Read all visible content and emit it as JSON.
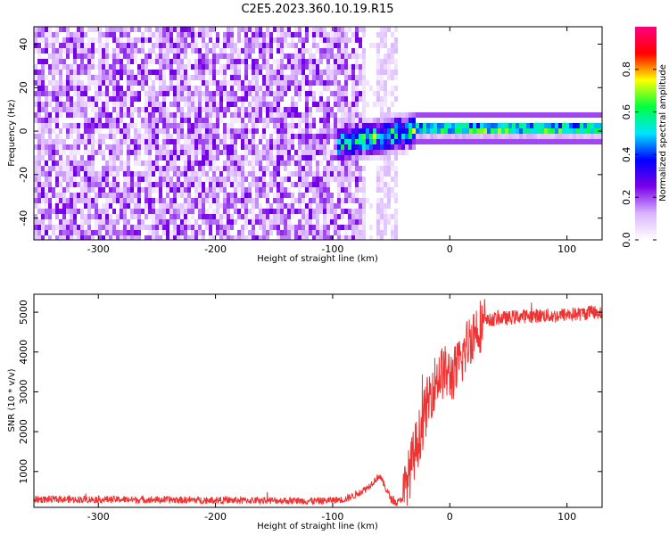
{
  "title": "C2E5.2023.360.10.19.R15",
  "colorbar": {
    "label": "Normalized spectral amplitude",
    "ticks": [
      "0.0",
      "0.2",
      "0.4",
      "0.6",
      "0.8"
    ],
    "tick_values": [
      0.0,
      0.2,
      0.4,
      0.6,
      0.8
    ],
    "range": [
      0,
      1
    ],
    "colormap": [
      "#ffffff",
      "#d9b3ff",
      "#7a00e6",
      "#0000ff",
      "#00e5ff",
      "#00ff40",
      "#ffff00",
      "#ff0000",
      "#ff007f"
    ]
  },
  "chart_data": [
    {
      "type": "heatmap",
      "xlabel": "Height of straight line (km)",
      "ylabel": "Frequency (Hz)",
      "xlim": [
        -355,
        130
      ],
      "ylim": [
        -50,
        48
      ],
      "xticks": [
        -300,
        -200,
        -100,
        0,
        100
      ],
      "xtick_labels": [
        "-300",
        "-200",
        "-100",
        "0",
        "100"
      ],
      "yticks": [
        -40,
        -20,
        0,
        20,
        40
      ],
      "ytick_labels": [
        "-40",
        "-20",
        "0",
        "20",
        "40"
      ],
      "grid": false,
      "description_values": {
        "noise_region_x": [
          -355,
          -45
        ],
        "noise_gap_x": [
          -72,
          -62
        ],
        "signal_line_frequency_hz": 1,
        "signal_line_x": [
          -30,
          130
        ],
        "transition_x": [
          -95,
          -30
        ],
        "transition_frequency_hz": [
          -8,
          5
        ]
      }
    },
    {
      "type": "line",
      "xlabel": "Height of straight line (km)",
      "ylabel": "SNR (10 * v/v)",
      "xlim": [
        -355,
        130
      ],
      "ylim": [
        100,
        5450
      ],
      "xticks": [
        -300,
        -200,
        -100,
        0,
        100
      ],
      "xtick_labels": [
        "-300",
        "-200",
        "-100",
        "0",
        "100"
      ],
      "yticks": [
        1000,
        2000,
        3000,
        4000,
        5000
      ],
      "ytick_labels": [
        "1000",
        "2000",
        "3000",
        "4000",
        "5000"
      ],
      "grid": false,
      "color": "#ee3333",
      "series": [
        {
          "x": [
            -355,
            -300,
            -250,
            -200,
            -150,
            -110,
            -90,
            -80,
            -70,
            -60,
            -50,
            -45,
            -40,
            -35,
            -30,
            -25,
            -20,
            -15,
            -10,
            -5,
            0,
            5,
            10,
            15,
            20,
            25,
            30,
            35,
            40,
            50,
            60,
            70,
            80,
            90,
            100,
            110,
            120,
            130
          ],
          "values": [
            300,
            300,
            290,
            280,
            270,
            260,
            300,
            420,
            600,
            900,
            300,
            200,
            350,
            900,
            1500,
            2000,
            2600,
            3100,
            3400,
            3500,
            3400,
            3500,
            3800,
            4200,
            4500,
            4650,
            4750,
            4800,
            4850,
            4850,
            4900,
            4900,
            4920,
            4900,
            4950,
            4950,
            5000,
            5000
          ]
        }
      ]
    }
  ]
}
